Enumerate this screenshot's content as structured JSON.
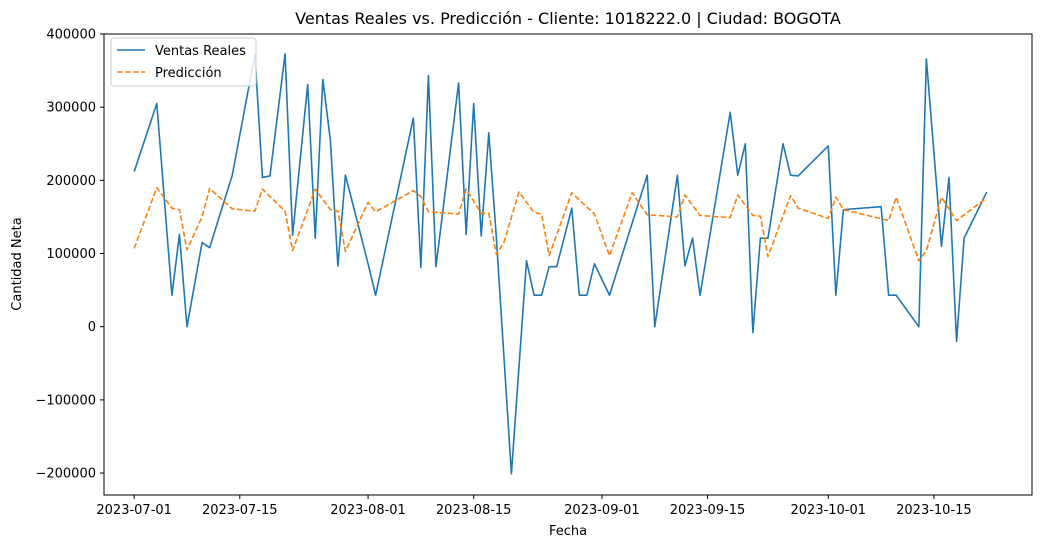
{
  "chart_data": {
    "type": "line",
    "title": "Ventas Reales vs. Predicción - Cliente: 1018222.0 | Ciudad: BOGOTA",
    "xlabel": "Fecha",
    "ylabel": "Cantidad Neta",
    "x_ticks": [
      "2023-07-01",
      "2023-07-15",
      "2023-08-01",
      "2023-08-15",
      "2023-09-01",
      "2023-09-15",
      "2023-10-01",
      "2023-10-15"
    ],
    "y_ticks": [
      -200000,
      -100000,
      0,
      100000,
      200000,
      300000,
      400000
    ],
    "y_tick_labels": [
      "−200000",
      "−100000",
      "0",
      "100000",
      "200000",
      "300000",
      "400000"
    ],
    "xlim": [
      "2023-06-27",
      "2023-10-28"
    ],
    "ylim": [
      -230000,
      400000
    ],
    "grid": false,
    "legend_position": "top-left",
    "series": [
      {
        "name": "Ventas Reales",
        "color": "#1f77b4",
        "style": "solid",
        "points": [
          [
            "2023-07-01",
            212000
          ],
          [
            "2023-07-04",
            305000
          ],
          [
            "2023-07-06",
            43000
          ],
          [
            "2023-07-07",
            126000
          ],
          [
            "2023-07-08",
            0
          ],
          [
            "2023-07-10",
            115000
          ],
          [
            "2023-07-11",
            108000
          ],
          [
            "2023-07-14",
            207000
          ],
          [
            "2023-07-17",
            372000
          ],
          [
            "2023-07-18",
            204000
          ],
          [
            "2023-07-19",
            206000
          ],
          [
            "2023-07-21",
            373000
          ],
          [
            "2023-07-22",
            125000
          ],
          [
            "2023-07-24",
            331000
          ],
          [
            "2023-07-25",
            121000
          ],
          [
            "2023-07-26",
            338000
          ],
          [
            "2023-07-27",
            255000
          ],
          [
            "2023-07-28",
            83000
          ],
          [
            "2023-07-29",
            207000
          ],
          [
            "2023-08-01",
            86000
          ],
          [
            "2023-08-02",
            43000
          ],
          [
            "2023-08-07",
            285000
          ],
          [
            "2023-08-08",
            81000
          ],
          [
            "2023-08-09",
            343000
          ],
          [
            "2023-08-10",
            82000
          ],
          [
            "2023-08-13",
            333000
          ],
          [
            "2023-08-14",
            126000
          ],
          [
            "2023-08-15",
            305000
          ],
          [
            "2023-08-16",
            124000
          ],
          [
            "2023-08-17",
            265000
          ],
          [
            "2023-08-18",
            122000
          ],
          [
            "2023-08-20",
            -201000
          ],
          [
            "2023-08-22",
            90000
          ],
          [
            "2023-08-23",
            43000
          ],
          [
            "2023-08-24",
            43000
          ],
          [
            "2023-08-25",
            82000
          ],
          [
            "2023-08-26",
            82000
          ],
          [
            "2023-08-28",
            162000
          ],
          [
            "2023-08-29",
            43000
          ],
          [
            "2023-08-30",
            43000
          ],
          [
            "2023-08-31",
            86000
          ],
          [
            "2023-09-02",
            43000
          ],
          [
            "2023-09-07",
            207000
          ],
          [
            "2023-09-08",
            0
          ],
          [
            "2023-09-11",
            207000
          ],
          [
            "2023-09-12",
            83000
          ],
          [
            "2023-09-13",
            121000
          ],
          [
            "2023-09-14",
            43000
          ],
          [
            "2023-09-18",
            293000
          ],
          [
            "2023-09-19",
            207000
          ],
          [
            "2023-09-20",
            250000
          ],
          [
            "2023-09-21",
            -8000
          ],
          [
            "2023-09-22",
            121000
          ],
          [
            "2023-09-23",
            121000
          ],
          [
            "2023-09-25",
            250000
          ],
          [
            "2023-09-26",
            207000
          ],
          [
            "2023-09-27",
            206000
          ],
          [
            "2023-10-01",
            247000
          ],
          [
            "2023-10-02",
            43000
          ],
          [
            "2023-10-03",
            160000
          ],
          [
            "2023-10-08",
            164000
          ],
          [
            "2023-10-09",
            43000
          ],
          [
            "2023-10-10",
            43000
          ],
          [
            "2023-10-13",
            0
          ],
          [
            "2023-10-14",
            366000
          ],
          [
            "2023-10-16",
            110000
          ],
          [
            "2023-10-17",
            204000
          ],
          [
            "2023-10-18",
            -20000
          ],
          [
            "2023-10-19",
            121000
          ],
          [
            "2023-10-22",
            184000
          ]
        ]
      },
      {
        "name": "Predicción",
        "color": "#ff7f0e",
        "style": "dashed",
        "points": [
          [
            "2023-07-01",
            107000
          ],
          [
            "2023-07-04",
            190000
          ],
          [
            "2023-07-06",
            162000
          ],
          [
            "2023-07-07",
            160000
          ],
          [
            "2023-07-08",
            105000
          ],
          [
            "2023-07-10",
            150000
          ],
          [
            "2023-07-11",
            189000
          ],
          [
            "2023-07-14",
            161000
          ],
          [
            "2023-07-17",
            158000
          ],
          [
            "2023-07-18",
            188000
          ],
          [
            "2023-07-21",
            158000
          ],
          [
            "2023-07-22",
            104000
          ],
          [
            "2023-07-24",
            160000
          ],
          [
            "2023-07-25",
            188000
          ],
          [
            "2023-07-27",
            160000
          ],
          [
            "2023-07-28",
            158000
          ],
          [
            "2023-07-29",
            103000
          ],
          [
            "2023-08-01",
            170000
          ],
          [
            "2023-08-02",
            157000
          ],
          [
            "2023-08-07",
            186000
          ],
          [
            "2023-08-08",
            178000
          ],
          [
            "2023-08-09",
            157000
          ],
          [
            "2023-08-13",
            154000
          ],
          [
            "2023-08-14",
            188000
          ],
          [
            "2023-08-16",
            155000
          ],
          [
            "2023-08-17",
            155000
          ],
          [
            "2023-08-18",
            99000
          ],
          [
            "2023-08-19",
            115000
          ],
          [
            "2023-08-21",
            184000
          ],
          [
            "2023-08-23",
            156000
          ],
          [
            "2023-08-24",
            154000
          ],
          [
            "2023-08-25",
            97000
          ],
          [
            "2023-08-28",
            183000
          ],
          [
            "2023-08-31",
            154000
          ],
          [
            "2023-09-02",
            97000
          ],
          [
            "2023-09-05",
            183000
          ],
          [
            "2023-09-07",
            153000
          ],
          [
            "2023-09-11",
            150000
          ],
          [
            "2023-09-12",
            180000
          ],
          [
            "2023-09-14",
            152000
          ],
          [
            "2023-09-18",
            149000
          ],
          [
            "2023-09-19",
            180000
          ],
          [
            "2023-09-21",
            152000
          ],
          [
            "2023-09-22",
            151000
          ],
          [
            "2023-09-23",
            96000
          ],
          [
            "2023-09-26",
            179000
          ],
          [
            "2023-09-27",
            162000
          ],
          [
            "2023-10-01",
            148000
          ],
          [
            "2023-10-02",
            177000
          ],
          [
            "2023-10-03",
            160000
          ],
          [
            "2023-10-09",
            145000
          ],
          [
            "2023-10-10",
            177000
          ],
          [
            "2023-10-13",
            90000
          ],
          [
            "2023-10-14",
            104000
          ],
          [
            "2023-10-16",
            177000
          ],
          [
            "2023-10-18",
            145000
          ],
          [
            "2023-10-22",
            176000
          ]
        ]
      }
    ]
  }
}
